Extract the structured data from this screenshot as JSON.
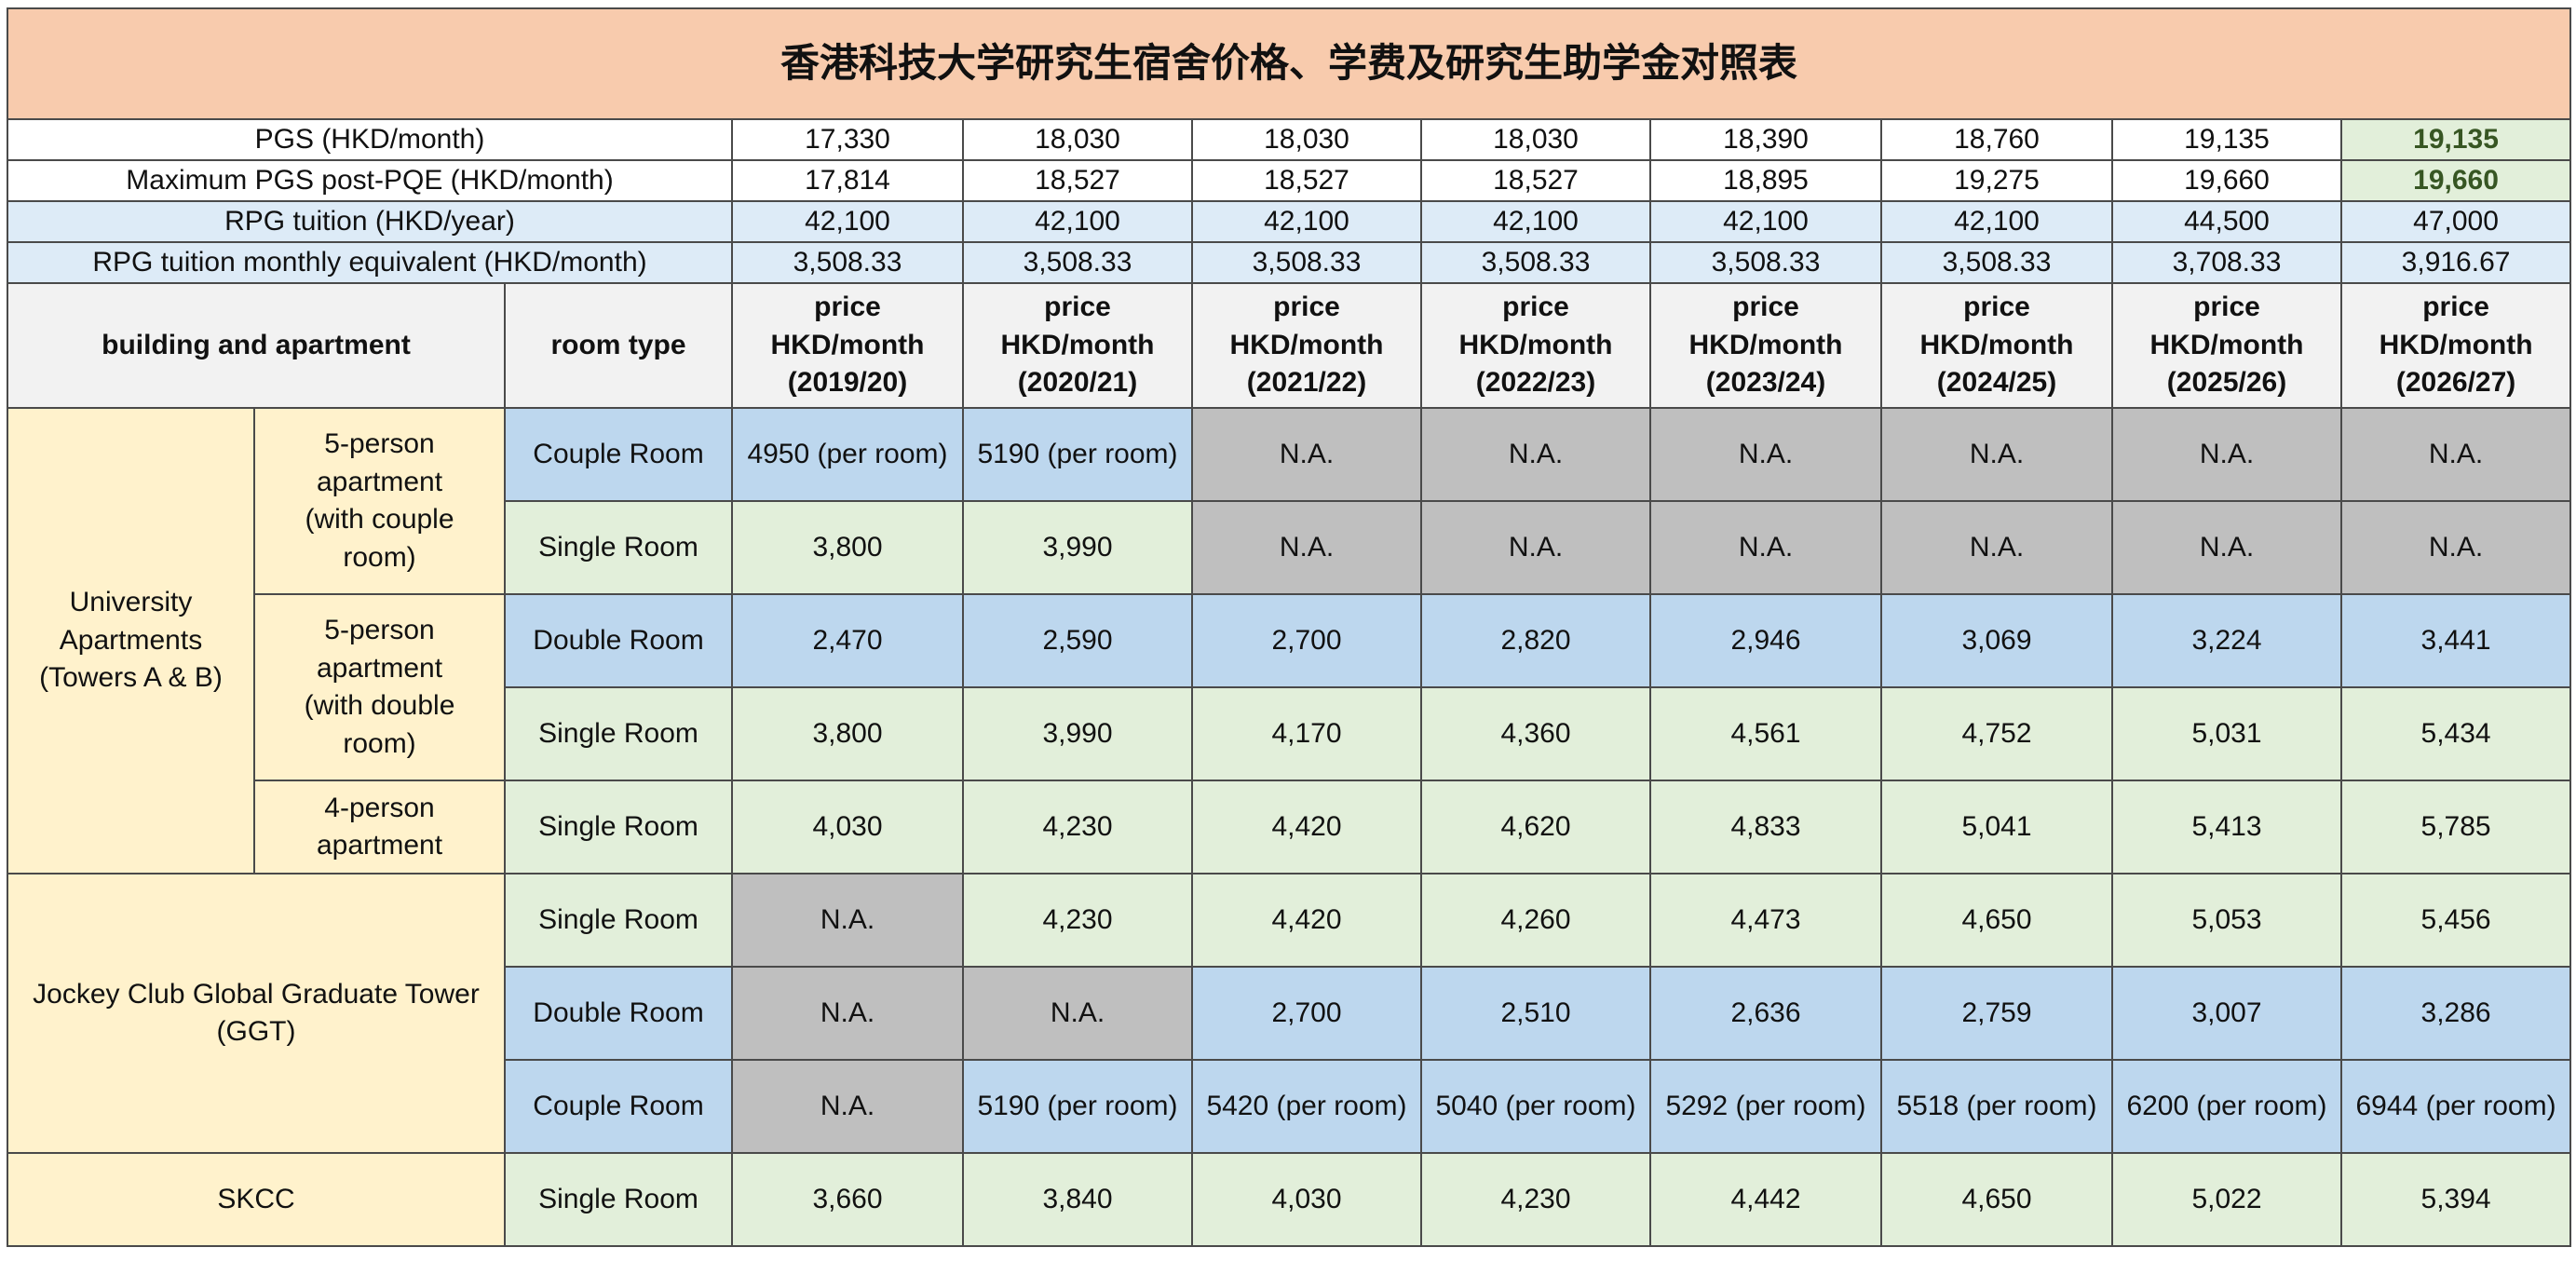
{
  "title": "香港科技大学研究生宿舍价格、学费及研究生助学金对照表",
  "title_color": "#f8cbad",
  "info_rows": [
    {
      "label": "PGS (HKD/month)",
      "color": "#ffffff",
      "values": [
        "17,330",
        "18,030",
        "18,030",
        "18,030",
        "18,390",
        "18,760",
        "19,135",
        "19,135"
      ],
      "colors": [
        "#ffffff",
        "#ffffff",
        "#ffffff",
        "#ffffff",
        "#ffffff",
        "#ffffff",
        "#ffffff",
        "#e2efda"
      ]
    },
    {
      "label": "Maximum PGS post-PQE (HKD/month)",
      "color": "#ffffff",
      "values": [
        "17,814",
        "18,527",
        "18,527",
        "18,527",
        "18,895",
        "19,275",
        "19,660",
        "19,660"
      ],
      "colors": [
        "#ffffff",
        "#ffffff",
        "#ffffff",
        "#ffffff",
        "#ffffff",
        "#ffffff",
        "#ffffff",
        "#e2efda"
      ]
    },
    {
      "label": "RPG tuition (HKD/year)",
      "color": "#ddebf7",
      "values": [
        "42,100",
        "42,100",
        "42,100",
        "42,100",
        "42,100",
        "42,100",
        "44,500",
        "47,000"
      ],
      "colors": [
        "#ddebf7",
        "#ddebf7",
        "#ddebf7",
        "#ddebf7",
        "#ddebf7",
        "#ddebf7",
        "#ddebf7",
        "#ddebf7"
      ]
    },
    {
      "label": "RPG tuition monthly equivalent (HKD/month)",
      "color": "#ddebf7",
      "values": [
        "3,508.33",
        "3,508.33",
        "3,508.33",
        "3,508.33",
        "3,508.33",
        "3,508.33",
        "3,708.33",
        "3,916.67"
      ],
      "colors": [
        "#ddebf7",
        "#ddebf7",
        "#ddebf7",
        "#ddebf7",
        "#ddebf7",
        "#ddebf7",
        "#ddebf7",
        "#ddebf7"
      ]
    }
  ],
  "header": {
    "color": "#f2f2f2",
    "building": "building and apartment",
    "room_type": "room type",
    "price_columns": [
      "price\nHKD/month\n(2019/20)",
      "price\nHKD/month\n(2020/21)",
      "price\nHKD/month\n(2021/22)",
      "price\nHKD/month\n(2022/23)",
      "price\nHKD/month\n(2023/24)",
      "price\nHKD/month\n(2024/25)",
      "price\nHKD/month\n(2025/26)",
      "price\nHKD/month\n(2026/27)"
    ]
  },
  "buildings": [
    {
      "name": "University\nApartments\n(Towers A & B)",
      "color": "#fff2cc",
      "groups": [
        {
          "name": "5-person\napartment\n(with couple\nroom)",
          "rows": [
            {
              "room": "Couple Room",
              "color": "#bdd7ee",
              "values": [
                "4950 (per room)",
                "5190 (per room)",
                "N.A.",
                "N.A.",
                "N.A.",
                "N.A.",
                "N.A.",
                "N.A."
              ],
              "colors": [
                "#bdd7ee",
                "#bdd7ee",
                "#bfbfbf",
                "#bfbfbf",
                "#bfbfbf",
                "#bfbfbf",
                "#bfbfbf",
                "#bfbfbf"
              ]
            },
            {
              "room": "Single Room",
              "color": "#e2efda",
              "values": [
                "3,800",
                "3,990",
                "N.A.",
                "N.A.",
                "N.A.",
                "N.A.",
                "N.A.",
                "N.A."
              ],
              "colors": [
                "#e2efda",
                "#e2efda",
                "#bfbfbf",
                "#bfbfbf",
                "#bfbfbf",
                "#bfbfbf",
                "#bfbfbf",
                "#bfbfbf"
              ]
            }
          ]
        },
        {
          "name": "5-person\napartment\n(with double\nroom)",
          "rows": [
            {
              "room": "Double Room",
              "color": "#bdd7ee",
              "values": [
                "2,470",
                "2,590",
                "2,700",
                "2,820",
                "2,946",
                "3,069",
                "3,224",
                "3,441"
              ],
              "colors": [
                "#bdd7ee",
                "#bdd7ee",
                "#bdd7ee",
                "#bdd7ee",
                "#bdd7ee",
                "#bdd7ee",
                "#bdd7ee",
                "#bdd7ee"
              ]
            },
            {
              "room": "Single Room",
              "color": "#e2efda",
              "values": [
                "3,800",
                "3,990",
                "4,170",
                "4,360",
                "4,561",
                "4,752",
                "5,031",
                "5,434"
              ],
              "colors": [
                "#e2efda",
                "#e2efda",
                "#e2efda",
                "#e2efda",
                "#e2efda",
                "#e2efda",
                "#e2efda",
                "#e2efda"
              ]
            }
          ]
        },
        {
          "name": "4-person\napartment",
          "rows": [
            {
              "room": "Single Room",
              "color": "#e2efda",
              "values": [
                "4,030",
                "4,230",
                "4,420",
                "4,620",
                "4,833",
                "5,041",
                "5,413",
                "5,785"
              ],
              "colors": [
                "#e2efda",
                "#e2efda",
                "#e2efda",
                "#e2efda",
                "#e2efda",
                "#e2efda",
                "#e2efda",
                "#e2efda"
              ]
            }
          ]
        }
      ]
    },
    {
      "name": "Jockey Club Global Graduate Tower\n(GGT)",
      "color": "#fff2cc",
      "rows": [
        {
          "room": "Single Room",
          "color": "#e2efda",
          "values": [
            "N.A.",
            "4,230",
            "4,420",
            "4,260",
            "4,473",
            "4,650",
            "5,053",
            "5,456"
          ],
          "colors": [
            "#bfbfbf",
            "#e2efda",
            "#e2efda",
            "#e2efda",
            "#e2efda",
            "#e2efda",
            "#e2efda",
            "#e2efda"
          ]
        },
        {
          "room": "Double Room",
          "color": "#bdd7ee",
          "values": [
            "N.A.",
            "N.A.",
            "2,700",
            "2,510",
            "2,636",
            "2,759",
            "3,007",
            "3,286"
          ],
          "colors": [
            "#bfbfbf",
            "#bfbfbf",
            "#bdd7ee",
            "#bdd7ee",
            "#bdd7ee",
            "#bdd7ee",
            "#bdd7ee",
            "#bdd7ee"
          ]
        },
        {
          "room": "Couple Room",
          "color": "#bdd7ee",
          "values": [
            "N.A.",
            "5190 (per room)",
            "5420 (per room)",
            "5040 (per room)",
            "5292 (per room)",
            "5518 (per room)",
            "6200 (per room)",
            "6944 (per room)"
          ],
          "colors": [
            "#bfbfbf",
            "#bdd7ee",
            "#bdd7ee",
            "#bdd7ee",
            "#bdd7ee",
            "#bdd7ee",
            "#bdd7ee",
            "#bdd7ee"
          ]
        }
      ]
    },
    {
      "name": "SKCC",
      "color": "#fff2cc",
      "rows": [
        {
          "room": "Single Room",
          "color": "#e2efda",
          "values": [
            "3,660",
            "3,840",
            "4,030",
            "4,230",
            "4,442",
            "4,650",
            "5,022",
            "5,394"
          ],
          "colors": [
            "#e2efda",
            "#e2efda",
            "#e2efda",
            "#e2efda",
            "#e2efda",
            "#e2efda",
            "#e2efda",
            "#e2efda"
          ]
        }
      ]
    }
  ]
}
